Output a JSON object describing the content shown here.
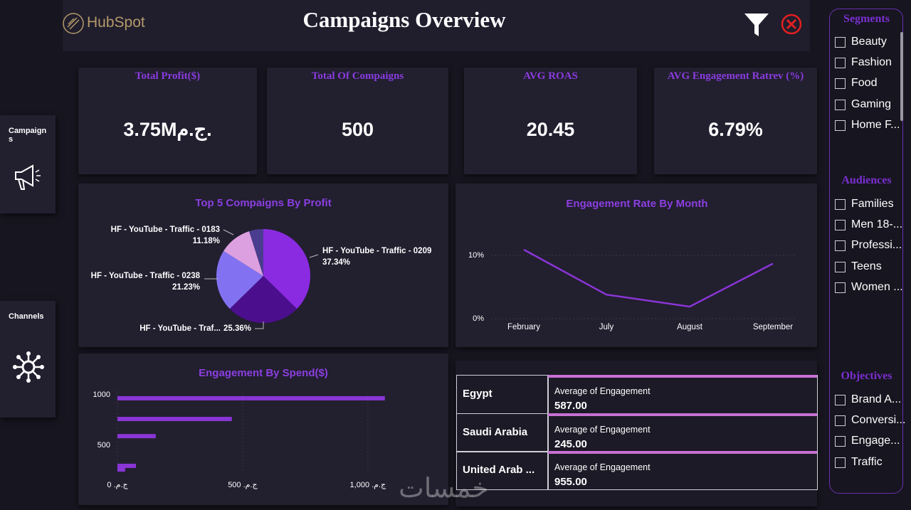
{
  "header": {
    "logo": "HubSpot",
    "title": "Campaigns Overview"
  },
  "nav": [
    "Campaigns",
    "Channels"
  ],
  "kpis": [
    {
      "label": "Total Profit($)",
      "value": "3.75Mج.م."
    },
    {
      "label": "Total Of Compaigns",
      "value": "500"
    },
    {
      "label": "AVG ROAS",
      "value": "20.45"
    },
    {
      "label": "AVG Engagement Ratrev (%)",
      "value": "6.79%"
    }
  ],
  "chart_data": [
    {
      "type": "pie",
      "title": "Top 5 Compaigns By Profit",
      "categories": [
        "HF - YouTube - Traffic - 0209",
        "HF - YouTube - Traf...",
        "HF - YouTube - Traffic - 0238",
        "HF - YouTube - Traffic - 0183",
        null
      ],
      "values": [
        37.34,
        25.36,
        21.23,
        11.18,
        4.89
      ],
      "value_labels": [
        "37.34%",
        "25.36%",
        "21.23%",
        "11.18%",
        null
      ],
      "colors": [
        "#8a2be2",
        "#4b0e8c",
        "#8272f2",
        "#dca0e0",
        "#4a3d8f"
      ]
    },
    {
      "type": "line",
      "title": "Engagement Rate By Month",
      "categories": [
        "February",
        "July",
        "August",
        "September"
      ],
      "values": [
        10.9,
        3.8,
        1.9,
        8.7
      ],
      "color": "#8a35d6",
      "ylim": [
        0,
        12
      ],
      "yticks": [
        {
          "value": 0,
          "label": "0%"
        },
        {
          "value": 10,
          "label": "10%"
        }
      ],
      "grid": true
    },
    {
      "type": "bar",
      "orientation": "horizontal",
      "title": "Engagement By Spend($)",
      "y": [
        965,
        760,
        590,
        296,
        260
      ],
      "values": [
        1068,
        457,
        153,
        74,
        31
      ],
      "color": "#8a35d6",
      "xlim": [
        0,
        1080
      ],
      "xticks": [
        {
          "value": 0,
          "label": "ج.م. 0"
        },
        {
          "value": 500,
          "label": "ج.م. 500"
        },
        {
          "value": 1000,
          "label": "ج.م. 1,000"
        }
      ],
      "ylim": [
        225,
        1035
      ],
      "yticks": [
        500,
        1000
      ],
      "grid": true
    }
  ],
  "table": {
    "metric_label": "Average of Engagement",
    "rows": [
      {
        "name": "Egypt",
        "value": "587.00"
      },
      {
        "name": "Saudi Arabia",
        "value": "245.00"
      },
      {
        "name": "United Arab ...",
        "value": "955.00"
      }
    ]
  },
  "slicers": [
    {
      "title": "Segments",
      "items": [
        "Beauty",
        "Fashion",
        "Food",
        "Gaming",
        "Home F..."
      ]
    },
    {
      "title": "Audiences",
      "items": [
        "Families",
        "Men 18-...",
        "Professi...",
        "Teens",
        "Women ..."
      ]
    },
    {
      "title": "Objectives",
      "items": [
        "Brand A...",
        "Conversi...",
        "Engage...",
        "Traffic"
      ]
    }
  ],
  "watermark": "خمسات"
}
